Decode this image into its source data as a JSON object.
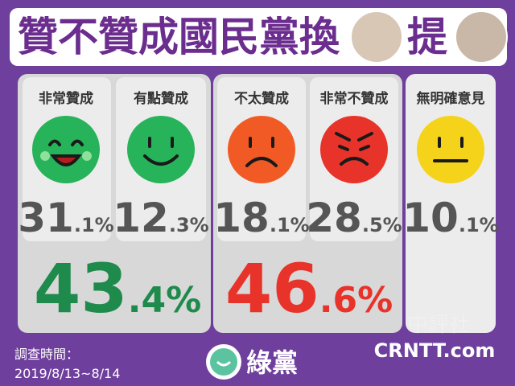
{
  "title": {
    "text_before": "贊不贊成國民黨換",
    "text_after": "提"
  },
  "options": [
    {
      "label": "非常贊成",
      "int": "31",
      "frac": ".1%"
    },
    {
      "label": "有點贊成",
      "int": "12",
      "frac": ".3%"
    },
    {
      "label": "不太贊成",
      "int": "18",
      "frac": ".1%"
    },
    {
      "label": "非常不贊成",
      "int": "28",
      "frac": ".5%"
    },
    {
      "label": "無明確意見",
      "int": "10",
      "frac": ".1%"
    }
  ],
  "groups": [
    {
      "int": "43",
      "frac": ".4%"
    },
    {
      "int": "46",
      "frac": ".6%"
    }
  ],
  "footer": {
    "survey_label": "調查時間：",
    "survey_date": "2019/8/13~8/14",
    "logo": "綠黨",
    "watermark_cn": "中評社",
    "watermark_en": "CRNTT.com"
  }
}
